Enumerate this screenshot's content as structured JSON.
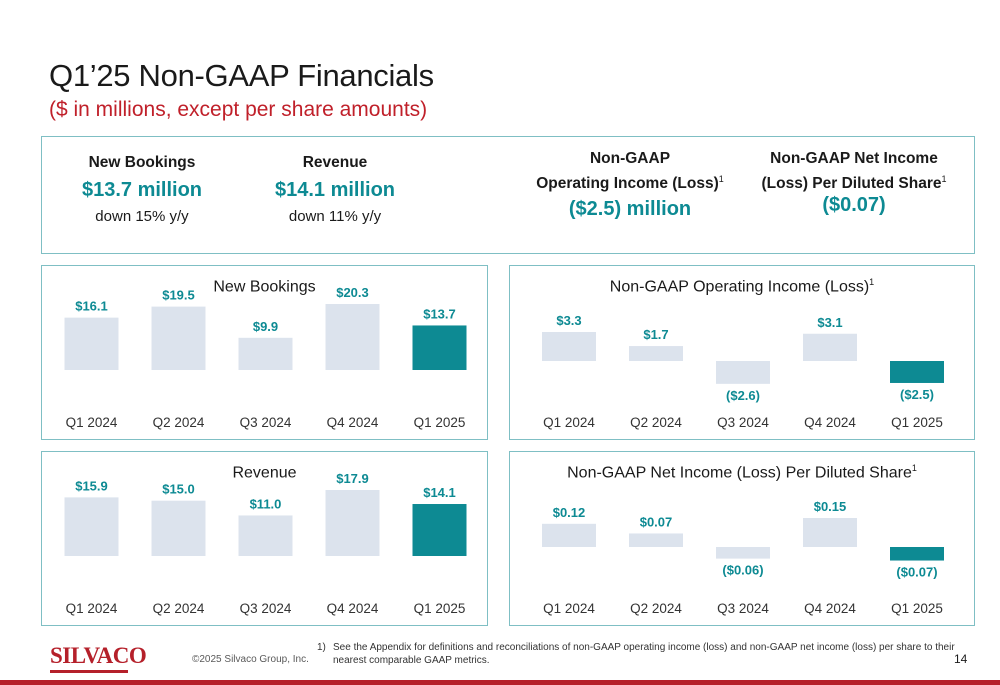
{
  "title": "Q1’25 Non-GAAP Financials",
  "subtitle": "($ in millions, except per share amounts)",
  "kpis": [
    {
      "label_line1": "New Bookings",
      "label_line2": "",
      "sup": "",
      "value": "$13.7 million",
      "sub": "down 15% y/y"
    },
    {
      "label_line1": "Revenue",
      "label_line2": "",
      "sup": "",
      "value": "$14.1 million",
      "sub": "down 11% y/y"
    },
    {
      "label_line1": "Non-GAAP",
      "label_line2": "Operating Income (Loss)",
      "sup": "1",
      "value": "($2.5) million",
      "sub": ""
    },
    {
      "label_line1": "Non-GAAP Net Income",
      "label_line2": "(Loss) Per Diluted Share",
      "sup": "1",
      "value": "($0.07)",
      "sub": ""
    }
  ],
  "colors": {
    "bar": "#dce3ed",
    "highlight": "#0d8a93",
    "label": "#0d8a93",
    "border": "#7fbfc4",
    "brand": "#b5202a"
  },
  "chart_data": [
    {
      "type": "bar",
      "title": "New Bookings",
      "sup": "",
      "categories": [
        "Q1 2024",
        "Q2 2024",
        "Q3 2024",
        "Q4 2024",
        "Q1 2025"
      ],
      "values": [
        16.1,
        19.5,
        9.9,
        20.3,
        13.7
      ],
      "labels": [
        "$16.1",
        "$19.5",
        "$9.9",
        "$20.3",
        "$13.7"
      ],
      "highlight_index": 4
    },
    {
      "type": "bar",
      "title": "Non-GAAP Operating Income (Loss)",
      "sup": "1",
      "categories": [
        "Q1 2024",
        "Q2 2024",
        "Q3 2024",
        "Q4 2024",
        "Q1 2025"
      ],
      "values": [
        3.3,
        1.7,
        -2.6,
        3.1,
        -2.5
      ],
      "labels": [
        "$3.3",
        "$1.7",
        "($2.6)",
        "$3.1",
        "($2.5)"
      ],
      "highlight_index": 4
    },
    {
      "type": "bar",
      "title": "Revenue",
      "sup": "",
      "categories": [
        "Q1 2024",
        "Q2 2024",
        "Q3 2024",
        "Q4 2024",
        "Q1 2025"
      ],
      "values": [
        15.9,
        15.0,
        11.0,
        17.9,
        14.1
      ],
      "labels": [
        "$15.9",
        "$15.0",
        "$11.0",
        "$17.9",
        "$14.1"
      ],
      "highlight_index": 4
    },
    {
      "type": "bar",
      "title": "Non-GAAP Net Income (Loss) Per Diluted Share",
      "sup": "1",
      "categories": [
        "Q1 2024",
        "Q2 2024",
        "Q3 2024",
        "Q4 2024",
        "Q1 2025"
      ],
      "values": [
        0.12,
        0.07,
        -0.06,
        0.15,
        -0.07
      ],
      "labels": [
        "$0.12",
        "$0.07",
        "($0.06)",
        "$0.15",
        "($0.07)"
      ],
      "highlight_index": 4
    }
  ],
  "footer": {
    "logo": "SILVACO",
    "copyright": "©2025 Silvaco Group, Inc.",
    "footnote_num": "1)",
    "footnote": "See the Appendix for definitions and reconciliations of non-GAAP operating income (loss) and non-GAAP net income (loss) per share to their nearest comparable GAAP metrics.",
    "page": "14"
  }
}
